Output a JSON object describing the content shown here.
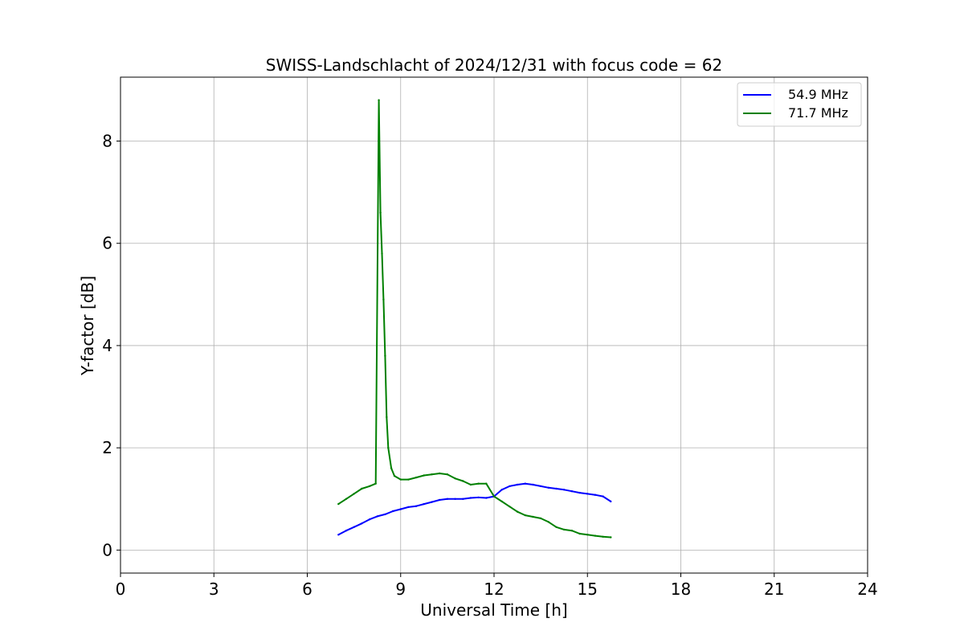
{
  "chart_data": {
    "type": "line",
    "title": "SWISS-Landschlacht of 2024/12/31 with focus code = 62",
    "xlabel": "Universal Time [h]",
    "ylabel": "Y-factor [dB]",
    "xlim": [
      0,
      24
    ],
    "ylim": [
      -0.45,
      9.25
    ],
    "xticks": [
      0,
      3,
      6,
      9,
      12,
      15,
      18,
      21,
      24
    ],
    "xtick_labels": [
      "0",
      "3",
      "6",
      "9",
      "12",
      "15",
      "18",
      "21",
      "24"
    ],
    "yticks": [
      0,
      2,
      4,
      6,
      8
    ],
    "ytick_labels": [
      "0",
      "2",
      "4",
      "6",
      "8"
    ],
    "grid": true,
    "legend_position": "top-right",
    "series": [
      {
        "name": "54.9 MHz",
        "color": "#0000ff",
        "x": [
          7.0,
          7.25,
          7.5,
          7.75,
          8.0,
          8.25,
          8.5,
          8.75,
          9.0,
          9.25,
          9.5,
          9.75,
          10.0,
          10.25,
          10.5,
          10.75,
          11.0,
          11.25,
          11.5,
          11.75,
          12.0,
          12.25,
          12.5,
          12.75,
          13.0,
          13.25,
          13.5,
          13.75,
          14.0,
          14.25,
          14.5,
          14.75,
          15.0,
          15.25,
          15.5,
          15.75
        ],
        "y": [
          0.3,
          0.38,
          0.45,
          0.52,
          0.6,
          0.66,
          0.7,
          0.76,
          0.8,
          0.84,
          0.86,
          0.9,
          0.94,
          0.98,
          1.0,
          1.0,
          1.0,
          1.02,
          1.03,
          1.02,
          1.05,
          1.18,
          1.25,
          1.28,
          1.3,
          1.28,
          1.25,
          1.22,
          1.2,
          1.18,
          1.15,
          1.12,
          1.1,
          1.08,
          1.05,
          0.95
        ]
      },
      {
        "name": "71.7 MHz",
        "color": "#008000",
        "x": [
          7.0,
          7.25,
          7.5,
          7.75,
          8.0,
          8.2,
          8.3,
          8.35,
          8.4,
          8.45,
          8.5,
          8.55,
          8.6,
          8.7,
          8.8,
          9.0,
          9.25,
          9.5,
          9.75,
          10.0,
          10.25,
          10.5,
          10.75,
          11.0,
          11.25,
          11.5,
          11.75,
          12.0,
          12.25,
          12.5,
          12.75,
          13.0,
          13.25,
          13.5,
          13.75,
          14.0,
          14.25,
          14.5,
          14.75,
          15.0,
          15.25,
          15.5,
          15.75
        ],
        "y": [
          0.9,
          1.0,
          1.1,
          1.2,
          1.25,
          1.3,
          8.8,
          6.6,
          5.8,
          4.9,
          3.8,
          2.6,
          2.0,
          1.6,
          1.45,
          1.38,
          1.38,
          1.42,
          1.46,
          1.48,
          1.5,
          1.48,
          1.4,
          1.35,
          1.28,
          1.3,
          1.3,
          1.05,
          0.95,
          0.85,
          0.75,
          0.68,
          0.65,
          0.62,
          0.55,
          0.45,
          0.4,
          0.38,
          0.32,
          0.3,
          0.28,
          0.26,
          0.25
        ]
      }
    ]
  }
}
